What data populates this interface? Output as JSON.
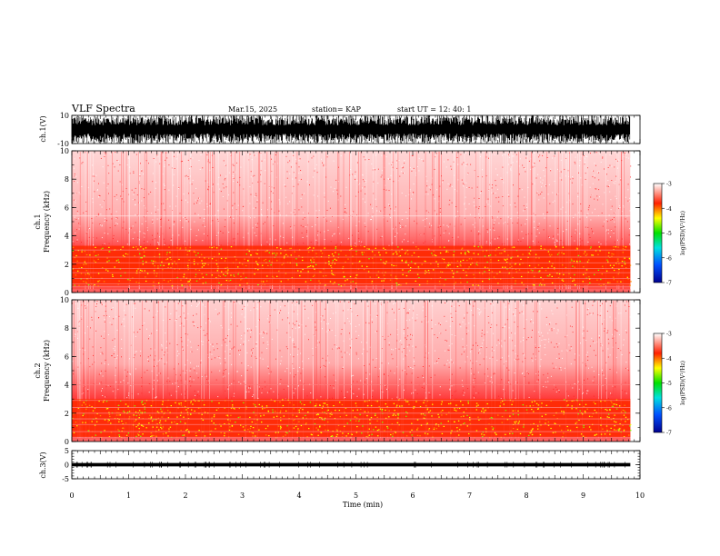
{
  "header": {
    "title": "VLF Spectra",
    "date": "Mar.15, 2025",
    "station": "station= KAP",
    "start_ut": "start  UT  =   12: 40: 1"
  },
  "chart_data": [
    {
      "type": "line",
      "name": "ch1-waveform",
      "ylabel": "ch.1(V)",
      "ylim": [
        -10,
        10
      ],
      "y_ticks": [
        "10",
        "-10"
      ],
      "xlim": [
        0,
        10
      ],
      "data_extent_min": 9.83,
      "envelope": [
        -10,
        10
      ]
    },
    {
      "type": "heatmap",
      "name": "ch1-spectrogram",
      "ylabel": "ch.1\nFrequency (kHz)",
      "ylim": [
        0,
        10
      ],
      "y_ticks": [
        "0",
        "2",
        "4",
        "6",
        "8",
        "10"
      ],
      "xlim": [
        0,
        10
      ],
      "data_extent_min": 9.83,
      "noise_band_khz": [
        0.5,
        3.3
      ],
      "band_lines_khz": [
        0.4,
        0.6,
        1.0,
        1.4,
        1.7,
        2.1,
        2.5,
        3.0,
        5.4
      ],
      "colorbar": {
        "label": "log(PSD)(V²/Hz)",
        "range": [
          -7,
          -3
        ],
        "ticks": [
          "-3",
          "-4",
          "-5",
          "-6",
          "-7"
        ]
      }
    },
    {
      "type": "heatmap",
      "name": "ch2-spectrogram",
      "ylabel": "ch.2\nFrequency (kHz)",
      "ylim": [
        0,
        10
      ],
      "y_ticks": [
        "0",
        "2",
        "4",
        "6",
        "8",
        "10"
      ],
      "xlim": [
        0,
        10
      ],
      "data_extent_min": 9.83,
      "noise_band_khz": [
        0.3,
        3.0
      ],
      "band_lines_khz": [
        0.3,
        0.7,
        1.2,
        1.6,
        2.0,
        2.4,
        2.9,
        4.0
      ],
      "colorbar": {
        "label": "log(PSD)(V²/Hz)",
        "range": [
          -7,
          -3
        ],
        "ticks": [
          "-3",
          "-4",
          "-5",
          "-6",
          "-7"
        ]
      }
    },
    {
      "type": "line",
      "name": "ch3-waveform",
      "ylabel": "ch.3(V)",
      "ylim": [
        -5,
        5
      ],
      "y_ticks": [
        "5",
        "0",
        "-5"
      ],
      "xlim": [
        0,
        10
      ],
      "data_extent_min": 9.83,
      "level": 0,
      "envelope": [
        -0.6,
        0.6
      ]
    }
  ],
  "x_axis": {
    "label": "Time (min)",
    "ticks": [
      "0",
      "1",
      "2",
      "3",
      "4",
      "5",
      "6",
      "7",
      "8",
      "9",
      "10"
    ]
  },
  "colors": {
    "background": "#ffffff",
    "spectrogram_base": "#ff3a3a",
    "low_power": "#ffffff",
    "high_power": "#ffff00",
    "trace": "#000000"
  }
}
